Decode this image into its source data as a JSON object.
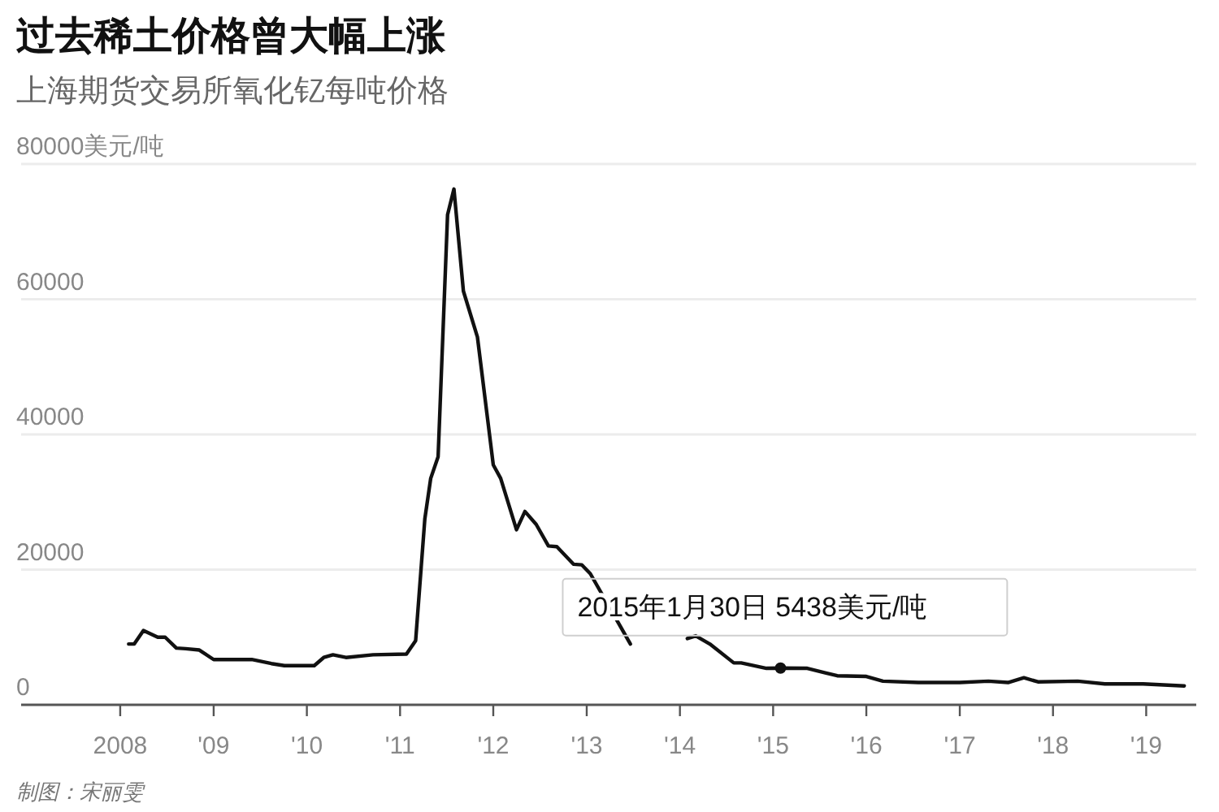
{
  "chart_data": {
    "type": "line",
    "title": "过去稀土价格曾大幅上涨",
    "subtitle": "上海期货交易所氧化钇每吨价格",
    "x": [
      "2008-02-03",
      "2008-02-25",
      "2008-04-01",
      "2008-05-27",
      "2008-06-25",
      "2008-08-08",
      "2008-09-13",
      "2008-11-06",
      "2009-01-01",
      "2009-05-30",
      "2009-08-15",
      "2009-10-05",
      "2010-01-30",
      "2010-03-08",
      "2010-04-13",
      "2010-06-03",
      "2010-09-17",
      "2011-01-26",
      "2011-03-03",
      "2011-04-08",
      "2011-05-01",
      "2011-05-30",
      "2011-07-06",
      "2011-07-31",
      "2011-09-06",
      "2011-10-31",
      "2012-01-01",
      "2012-01-30",
      "2012-04-01",
      "2012-05-04",
      "2012-06-17",
      "2012-08-04",
      "2012-09-06",
      "2012-11-10",
      "2012-12-13",
      "2013-01-15",
      "2013-06-21",
      "2013-10-27",
      "2014-01-30",
      "2014-03-04",
      "2014-04-28",
      "2014-07-31",
      "2014-08-29",
      "2014-12-06",
      "2015-01-30",
      "2015-05-15",
      "2015-09-09",
      "2016-01-01",
      "2016-03-06",
      "2016-07-23",
      "2017-01-01",
      "2017-04-23",
      "2017-07-09",
      "2017-09-09",
      "2017-11-03",
      "2018-04-08",
      "2018-07-23",
      "2018-12-20",
      "2019-05-30"
    ],
    "series": [
      {
        "color": "#111111",
        "values": [
          9000,
          9000,
          11000,
          10000,
          10000,
          8400,
          8300,
          8100,
          6700,
          6700,
          6100,
          5800,
          5800,
          7000,
          7400,
          7000,
          7400,
          7500,
          9500,
          27500,
          33500,
          36700,
          72500,
          76300,
          61200,
          54400,
          35500,
          33500,
          25900,
          28600,
          26700,
          23500,
          23400,
          20800,
          20700,
          19400,
          9000,
          null,
          9800,
          10200,
          9000,
          6200,
          6200,
          5400,
          5438,
          5400,
          4300,
          4200,
          3500,
          3300,
          3300,
          3500,
          3300,
          4000,
          3400,
          3500,
          3100,
          3100,
          2800
        ]
      }
    ],
    "xlim": [
      "2006-12-09",
      "2019-07-16"
    ],
    "xticks": [
      {
        "value": "2008-01-01",
        "label": "2008"
      },
      {
        "value": "2009-01-01",
        "label": "'09"
      },
      {
        "value": "2010-01-01",
        "label": "'10"
      },
      {
        "value": "2011-01-01",
        "label": "'11"
      },
      {
        "value": "2012-01-01",
        "label": "'12"
      },
      {
        "value": "2013-01-01",
        "label": "'13"
      },
      {
        "value": "2014-01-01",
        "label": "'14"
      },
      {
        "value": "2015-01-01",
        "label": "'15"
      },
      {
        "value": "2016-01-01",
        "label": "'16"
      },
      {
        "value": "2017-01-01",
        "label": "'17"
      },
      {
        "value": "2018-01-01",
        "label": "'18"
      },
      {
        "value": "2019-01-01",
        "label": "'19"
      }
    ],
    "ylim": [
      0,
      80000
    ],
    "yticks": [
      0,
      20000,
      40000,
      60000,
      {
        "value": 80000,
        "label": "80000美元/吨"
      }
    ],
    "grid": "y",
    "annotations": [
      {
        "text": "2015年1月30日 5438美元/吨",
        "x": "2015-01-30",
        "y": 5438
      },
      "制图：宋丽雯"
    ]
  }
}
